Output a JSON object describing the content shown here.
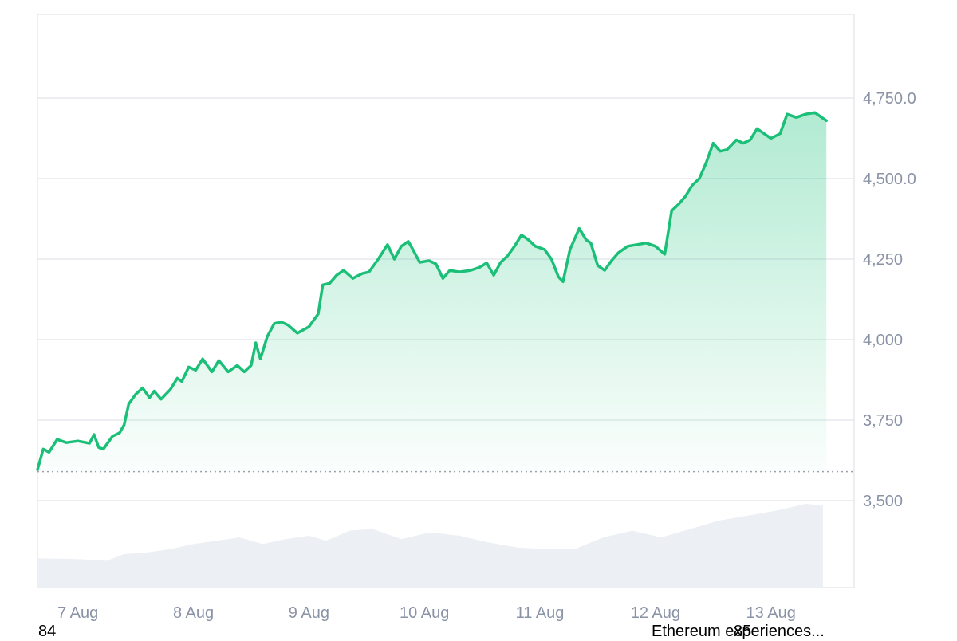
{
  "chart_data": {
    "type": "area",
    "x_ticks": [
      "7 Aug",
      "8 Aug",
      "9 Aug",
      "10 Aug",
      "11 Aug",
      "12 Aug",
      "13 Aug"
    ],
    "y_ticks": [
      "3,500",
      "3,750",
      "4,000",
      "4,250",
      "4,500.0",
      "4,750.0"
    ],
    "y_tick_values": [
      3500,
      3750,
      4000,
      4250,
      4500,
      4750
    ],
    "ylim": [
      3230,
      5010
    ],
    "x_range_days": [
      6.65,
      13.72
    ],
    "baseline": 3590,
    "grid": true,
    "series": [
      {
        "values": [
          [
            6.65,
            3596
          ],
          [
            6.7,
            3660
          ],
          [
            6.75,
            3650
          ],
          [
            6.82,
            3690
          ],
          [
            6.9,
            3680
          ],
          [
            7.0,
            3685
          ],
          [
            7.1,
            3678
          ],
          [
            7.14,
            3705
          ],
          [
            7.18,
            3665
          ],
          [
            7.22,
            3660
          ],
          [
            7.3,
            3700
          ],
          [
            7.36,
            3710
          ],
          [
            7.4,
            3735
          ],
          [
            7.44,
            3800
          ],
          [
            7.5,
            3830
          ],
          [
            7.56,
            3850
          ],
          [
            7.62,
            3820
          ],
          [
            7.66,
            3840
          ],
          [
            7.72,
            3815
          ],
          [
            7.8,
            3845
          ],
          [
            7.86,
            3880
          ],
          [
            7.9,
            3870
          ],
          [
            7.96,
            3915
          ],
          [
            8.02,
            3905
          ],
          [
            8.08,
            3940
          ],
          [
            8.16,
            3900
          ],
          [
            8.22,
            3935
          ],
          [
            8.3,
            3900
          ],
          [
            8.38,
            3920
          ],
          [
            8.44,
            3900
          ],
          [
            8.5,
            3920
          ],
          [
            8.54,
            3990
          ],
          [
            8.58,
            3940
          ],
          [
            8.64,
            4010
          ],
          [
            8.7,
            4050
          ],
          [
            8.76,
            4055
          ],
          [
            8.82,
            4045
          ],
          [
            8.9,
            4020
          ],
          [
            9.0,
            4040
          ],
          [
            9.08,
            4080
          ],
          [
            9.12,
            4170
          ],
          [
            9.18,
            4175
          ],
          [
            9.24,
            4200
          ],
          [
            9.3,
            4215
          ],
          [
            9.38,
            4190
          ],
          [
            9.46,
            4205
          ],
          [
            9.52,
            4210
          ],
          [
            9.6,
            4250
          ],
          [
            9.68,
            4295
          ],
          [
            9.74,
            4250
          ],
          [
            9.8,
            4290
          ],
          [
            9.86,
            4305
          ],
          [
            9.9,
            4280
          ],
          [
            9.96,
            4240
          ],
          [
            10.04,
            4245
          ],
          [
            10.1,
            4235
          ],
          [
            10.16,
            4190
          ],
          [
            10.22,
            4215
          ],
          [
            10.3,
            4210
          ],
          [
            10.4,
            4215
          ],
          [
            10.48,
            4225
          ],
          [
            10.54,
            4238
          ],
          [
            10.6,
            4200
          ],
          [
            10.66,
            4240
          ],
          [
            10.72,
            4260
          ],
          [
            10.78,
            4290
          ],
          [
            10.84,
            4325
          ],
          [
            10.9,
            4310
          ],
          [
            10.96,
            4290
          ],
          [
            11.04,
            4280
          ],
          [
            11.1,
            4250
          ],
          [
            11.16,
            4195
          ],
          [
            11.2,
            4180
          ],
          [
            11.26,
            4280
          ],
          [
            11.34,
            4345
          ],
          [
            11.4,
            4310
          ],
          [
            11.44,
            4300
          ],
          [
            11.5,
            4230
          ],
          [
            11.56,
            4215
          ],
          [
            11.62,
            4245
          ],
          [
            11.68,
            4270
          ],
          [
            11.76,
            4290
          ],
          [
            11.84,
            4295
          ],
          [
            11.92,
            4300
          ],
          [
            12.0,
            4290
          ],
          [
            12.08,
            4265
          ],
          [
            12.14,
            4400
          ],
          [
            12.2,
            4420
          ],
          [
            12.26,
            4445
          ],
          [
            12.32,
            4480
          ],
          [
            12.38,
            4500
          ],
          [
            12.44,
            4550
          ],
          [
            12.5,
            4610
          ],
          [
            12.56,
            4585
          ],
          [
            12.62,
            4590
          ],
          [
            12.7,
            4620
          ],
          [
            12.76,
            4610
          ],
          [
            12.82,
            4620
          ],
          [
            12.88,
            4655
          ],
          [
            12.94,
            4640
          ],
          [
            13.0,
            4625
          ],
          [
            13.08,
            4640
          ],
          [
            13.14,
            4700
          ],
          [
            13.22,
            4690
          ],
          [
            13.3,
            4700
          ],
          [
            13.38,
            4705
          ],
          [
            13.44,
            4690
          ],
          [
            13.48,
            4680
          ]
        ]
      }
    ],
    "volume": [
      [
        6.65,
        0.35
      ],
      [
        7.0,
        0.34
      ],
      [
        7.25,
        0.32
      ],
      [
        7.4,
        0.4
      ],
      [
        7.6,
        0.42
      ],
      [
        7.8,
        0.46
      ],
      [
        8.0,
        0.52
      ],
      [
        8.2,
        0.56
      ],
      [
        8.4,
        0.6
      ],
      [
        8.6,
        0.52
      ],
      [
        8.8,
        0.58
      ],
      [
        9.0,
        0.62
      ],
      [
        9.15,
        0.56
      ],
      [
        9.35,
        0.68
      ],
      [
        9.55,
        0.7
      ],
      [
        9.8,
        0.58
      ],
      [
        10.05,
        0.66
      ],
      [
        10.3,
        0.62
      ],
      [
        10.55,
        0.54
      ],
      [
        10.8,
        0.48
      ],
      [
        11.05,
        0.46
      ],
      [
        11.3,
        0.46
      ],
      [
        11.55,
        0.6
      ],
      [
        11.8,
        0.68
      ],
      [
        12.05,
        0.6
      ],
      [
        12.25,
        0.68
      ],
      [
        12.55,
        0.8
      ],
      [
        12.8,
        0.86
      ],
      [
        13.05,
        0.92
      ],
      [
        13.3,
        1.0
      ],
      [
        13.45,
        0.98
      ]
    ]
  },
  "footer": {
    "left": "84",
    "right_a": "Ethereum experiences...",
    "right_b": "85"
  },
  "colors": {
    "line": "#1bbf78",
    "fill_top": "#22c47f",
    "grid": "#e6e9ee",
    "axis_text": "#8a93a6",
    "volume": "#eceff3"
  }
}
